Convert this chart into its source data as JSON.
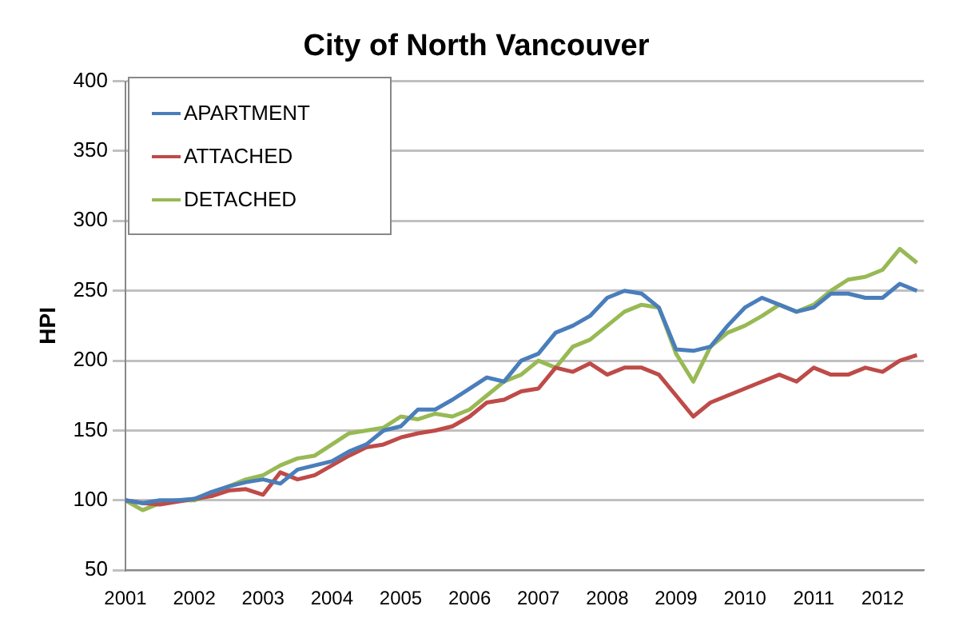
{
  "chart_data": {
    "type": "line",
    "title": "City of North Vancouver",
    "ylabel": "HPI",
    "x": [
      2001,
      2001.25,
      2001.5,
      2001.75,
      2002,
      2002.25,
      2002.5,
      2002.75,
      2003,
      2003.25,
      2003.5,
      2003.75,
      2004,
      2004.25,
      2004.5,
      2004.75,
      2005,
      2005.25,
      2005.5,
      2005.75,
      2006,
      2006.25,
      2006.5,
      2006.75,
      2007,
      2007.25,
      2007.5,
      2007.75,
      2008,
      2008.25,
      2008.5,
      2008.75,
      2009,
      2009.25,
      2009.5,
      2009.75,
      2010,
      2010.25,
      2010.5,
      2010.75,
      2011,
      2011.25,
      2011.5,
      2011.75,
      2012,
      2012.25,
      2012.5
    ],
    "series": [
      {
        "name": "APARTMENT",
        "color": "#4a7ebb",
        "values": [
          100,
          98,
          100,
          100,
          101,
          106,
          110,
          113,
          115,
          112,
          122,
          125,
          128,
          135,
          140,
          150,
          153,
          165,
          165,
          172,
          180,
          188,
          185,
          200,
          205,
          220,
          225,
          232,
          245,
          250,
          248,
          238,
          208,
          207,
          210,
          225,
          238,
          245,
          240,
          235,
          238,
          248,
          248,
          245,
          245,
          255,
          250
        ]
      },
      {
        "name": "ATTACHED",
        "color": "#be4b48",
        "values": [
          100,
          98,
          97,
          99,
          101,
          103,
          107,
          108,
          104,
          120,
          115,
          118,
          125,
          132,
          138,
          140,
          145,
          148,
          150,
          153,
          160,
          170,
          172,
          178,
          180,
          195,
          192,
          198,
          190,
          195,
          195,
          190,
          175,
          160,
          170,
          175,
          180,
          185,
          190,
          185,
          195,
          190,
          190,
          195,
          192,
          200,
          204
        ]
      },
      {
        "name": "DETACHED",
        "color": "#98b954",
        "values": [
          100,
          93,
          98,
          100,
          100,
          104,
          110,
          115,
          118,
          125,
          130,
          132,
          140,
          148,
          150,
          152,
          160,
          158,
          162,
          160,
          165,
          175,
          185,
          190,
          200,
          195,
          210,
          215,
          225,
          235,
          240,
          238,
          205,
          185,
          210,
          220,
          225,
          232,
          240,
          235,
          240,
          250,
          258,
          260,
          265,
          280,
          270
        ]
      }
    ],
    "xlim": [
      2001,
      2012.6
    ],
    "xticks": [
      2001,
      2002,
      2003,
      2004,
      2005,
      2006,
      2007,
      2008,
      2009,
      2010,
      2011,
      2012
    ],
    "ylim": [
      50,
      400
    ],
    "yticks": [
      50,
      100,
      150,
      200,
      250,
      300,
      350,
      400
    ],
    "grid": "y",
    "legend": "top left",
    "marker": "none",
    "line_style": "solid"
  }
}
